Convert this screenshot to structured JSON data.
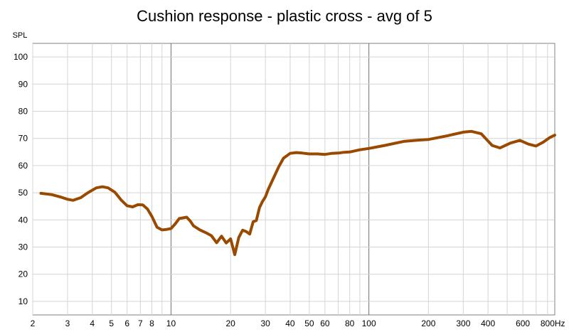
{
  "chart_data": {
    "type": "line",
    "title": "Cushion response - plastic cross - avg of 5",
    "ylabel": "SPL",
    "xlabel": "",
    "x_scale": "log",
    "xlim": [
      2,
      870
    ],
    "ylim": [
      5,
      105
    ],
    "grid": true,
    "x_tick_labels": [
      {
        "value": 2,
        "label": "2"
      },
      {
        "value": 3,
        "label": "3"
      },
      {
        "value": 4,
        "label": "4"
      },
      {
        "value": 5,
        "label": "5"
      },
      {
        "value": 6,
        "label": "6"
      },
      {
        "value": 7,
        "label": "7"
      },
      {
        "value": 8,
        "label": "8"
      },
      {
        "value": 10,
        "label": "10"
      },
      {
        "value": 20,
        "label": "20"
      },
      {
        "value": 30,
        "label": "30"
      },
      {
        "value": 40,
        "label": "40"
      },
      {
        "value": 50,
        "label": "50"
      },
      {
        "value": 60,
        "label": "60"
      },
      {
        "value": 80,
        "label": "80"
      },
      {
        "value": 100,
        "label": "100"
      },
      {
        "value": 200,
        "label": "200"
      },
      {
        "value": 300,
        "label": "300"
      },
      {
        "value": 400,
        "label": "400"
      },
      {
        "value": 600,
        "label": "600"
      },
      {
        "value": 800,
        "label": "800Hz"
      }
    ],
    "y_tick_labels": [
      {
        "value": 10,
        "label": "10"
      },
      {
        "value": 20,
        "label": "20"
      },
      {
        "value": 30,
        "label": "30"
      },
      {
        "value": 40,
        "label": "40"
      },
      {
        "value": 50,
        "label": "50"
      },
      {
        "value": 60,
        "label": "60"
      },
      {
        "value": 70,
        "label": "70"
      },
      {
        "value": 80,
        "label": "80"
      },
      {
        "value": 90,
        "label": "90"
      },
      {
        "value": 100,
        "label": "100"
      }
    ],
    "series": [
      {
        "color": "#9a4a00",
        "x": [
          2.2,
          2.5,
          2.8,
          3.0,
          3.2,
          3.5,
          3.8,
          4.2,
          4.5,
          4.8,
          5.2,
          5.6,
          6.0,
          6.4,
          6.8,
          7.2,
          7.6,
          8.0,
          8.5,
          9.0,
          9.5,
          10.0,
          10.5,
          11.0,
          12.0,
          12.5,
          13.0,
          14.0,
          15.0,
          16.0,
          17.0,
          18.0,
          19.0,
          20.0,
          21.0,
          22.0,
          23.0,
          24.0,
          25.0,
          26.0,
          27.0,
          28.0,
          29.0,
          30.0,
          31.0,
          33.0,
          35.0,
          37.0,
          40.0,
          43.0,
          46.0,
          50.0,
          55.0,
          60.0,
          65.0,
          70.0,
          75.0,
          80.0,
          90.0,
          100.0,
          120.0,
          150.0,
          180.0,
          200.0,
          250.0,
          300.0,
          330.0,
          370.0,
          420.0,
          460.0,
          520.0,
          580.0,
          640.0,
          700.0,
          760.0,
          820.0,
          870.0
        ],
        "y": [
          49.8,
          49.3,
          48.3,
          47.6,
          47.2,
          48.2,
          50.0,
          51.8,
          52.2,
          51.8,
          50.2,
          47.3,
          45.2,
          44.8,
          45.6,
          45.5,
          44.0,
          41.3,
          37.3,
          36.3,
          36.5,
          36.8,
          38.5,
          40.5,
          41.0,
          39.6,
          37.8,
          36.3,
          35.3,
          34.2,
          31.6,
          34.0,
          31.5,
          33.0,
          27.2,
          33.5,
          36.2,
          35.7,
          34.8,
          39.3,
          39.8,
          44.5,
          46.8,
          48.5,
          51.2,
          55.5,
          59.5,
          62.7,
          64.5,
          64.8,
          64.6,
          64.3,
          64.3,
          64.1,
          64.5,
          64.6,
          64.9,
          65.0,
          65.8,
          66.3,
          67.4,
          68.9,
          69.4,
          69.6,
          71.0,
          72.3,
          72.6,
          71.7,
          67.4,
          66.5,
          68.3,
          69.3,
          67.9,
          67.2,
          68.6,
          70.3,
          71.2
        ]
      }
    ]
  }
}
